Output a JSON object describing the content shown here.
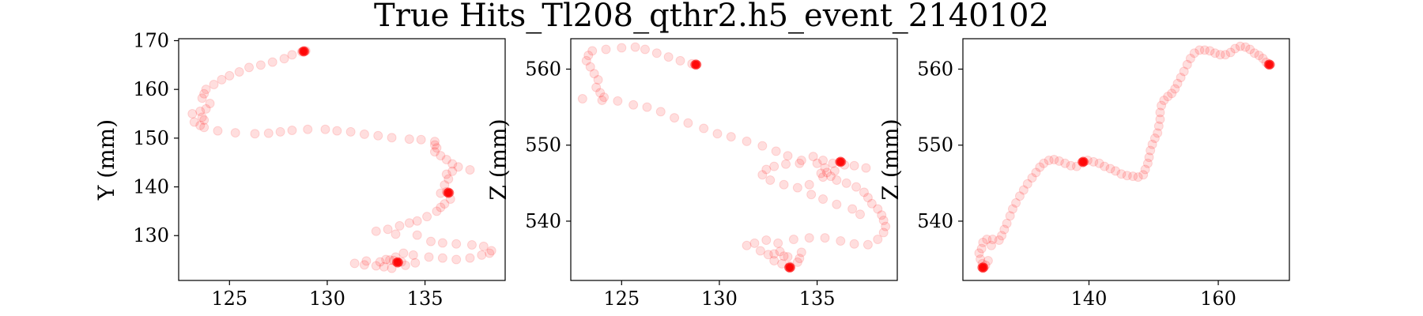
{
  "figure": {
    "title": "True Hits_Tl208_qthr2.h5_event_2140102",
    "marker_color": "#ff0000"
  },
  "chart_data": [
    {
      "type": "scatter",
      "xlabel": "",
      "ylabel": "Y (mm)",
      "xlim": [
        122.4,
        139.1
      ],
      "ylim": [
        120.8,
        170.4
      ],
      "xticks": [
        125,
        130,
        135
      ],
      "yticks": [
        130,
        140,
        150,
        160,
        170
      ],
      "points": [
        [
          128.9,
          167.9
        ],
        [
          128.7,
          167.7
        ],
        [
          128.2,
          167.1
        ],
        [
          127.8,
          166.3
        ],
        [
          127.2,
          165.6
        ],
        [
          126.6,
          165.0
        ],
        [
          126.0,
          164.5
        ],
        [
          125.5,
          163.6
        ],
        [
          125.0,
          162.8
        ],
        [
          124.6,
          162.0
        ],
        [
          124.2,
          161.0
        ],
        [
          123.8,
          160.0
        ],
        [
          123.7,
          159.1
        ],
        [
          123.6,
          158.2
        ],
        [
          124.0,
          157.1
        ],
        [
          123.8,
          156.0
        ],
        [
          123.5,
          155.5
        ],
        [
          123.1,
          155.0
        ],
        [
          123.6,
          154.3
        ],
        [
          123.7,
          153.7
        ],
        [
          123.2,
          153.3
        ],
        [
          123.5,
          152.6
        ],
        [
          123.7,
          152.2
        ],
        [
          124.4,
          151.5
        ],
        [
          125.3,
          151.1
        ],
        [
          126.3,
          150.9
        ],
        [
          127.0,
          151.0
        ],
        [
          127.6,
          151.3
        ],
        [
          128.2,
          151.6
        ],
        [
          129.0,
          151.8
        ],
        [
          129.9,
          151.8
        ],
        [
          130.5,
          151.5
        ],
        [
          131.2,
          151.3
        ],
        [
          131.9,
          150.8
        ],
        [
          132.6,
          150.5
        ],
        [
          133.3,
          150.1
        ],
        [
          134.2,
          149.8
        ],
        [
          134.8,
          149.7
        ],
        [
          135.5,
          149.3
        ],
        [
          135.5,
          148.6
        ],
        [
          135.6,
          148.0
        ],
        [
          135.5,
          147.2
        ],
        [
          135.8,
          146.4
        ],
        [
          136.1,
          145.6
        ],
        [
          136.4,
          144.7
        ],
        [
          136.7,
          144.1
        ],
        [
          137.3,
          143.5
        ],
        [
          136.4,
          143.2
        ],
        [
          136.1,
          142.6
        ],
        [
          136.2,
          141.6
        ],
        [
          136.0,
          140.4
        ],
        [
          136.1,
          139.0
        ],
        [
          135.8,
          138.7
        ],
        [
          136.3,
          137.5
        ],
        [
          136.0,
          136.5
        ],
        [
          135.8,
          135.8
        ],
        [
          135.6,
          135.0
        ],
        [
          135.1,
          133.9
        ],
        [
          134.6,
          133.0
        ],
        [
          134.2,
          132.6
        ],
        [
          133.7,
          132.0
        ],
        [
          133.1,
          131.3
        ],
        [
          132.5,
          130.9
        ],
        [
          133.5,
          130.3
        ],
        [
          134.6,
          130.1
        ],
        [
          135.3,
          128.8
        ],
        [
          135.9,
          128.5
        ],
        [
          136.6,
          128.3
        ],
        [
          137.4,
          128.1
        ],
        [
          138.0,
          127.8
        ],
        [
          138.4,
          126.9
        ],
        [
          138.3,
          126.4
        ],
        [
          137.9,
          126.0
        ],
        [
          137.3,
          125.4
        ],
        [
          136.6,
          125.1
        ],
        [
          135.9,
          125.4
        ],
        [
          135.2,
          125.6
        ],
        [
          134.4,
          126.0
        ],
        [
          133.9,
          126.4
        ],
        [
          133.5,
          125.6
        ],
        [
          133.2,
          125.0
        ],
        [
          132.7,
          124.6
        ],
        [
          132.0,
          124.8
        ],
        [
          131.4,
          124.3
        ],
        [
          131.9,
          124.0
        ],
        [
          132.5,
          123.8
        ],
        [
          132.9,
          123.6
        ],
        [
          133.3,
          123.3
        ],
        [
          134.0,
          123.9
        ],
        [
          134.5,
          124.4
        ],
        [
          133.8,
          124.6
        ],
        [
          133.4,
          124.9
        ],
        [
          133.0,
          125.1
        ]
      ],
      "highlights": [
        [
          128.8,
          167.8
        ],
        [
          136.2,
          138.8
        ],
        [
          133.6,
          124.5
        ]
      ]
    },
    {
      "type": "scatter",
      "xlabel": "",
      "ylabel": "Z (mm)",
      "xlim": [
        122.4,
        139.1
      ],
      "ylim": [
        532.2,
        564.0
      ],
      "xticks": [
        125,
        130,
        135
      ],
      "yticks": [
        540,
        550,
        560
      ],
      "points": [
        [
          128.6,
          560.7
        ],
        [
          128.0,
          561.1
        ],
        [
          127.4,
          561.6
        ],
        [
          126.8,
          562.1
        ],
        [
          126.2,
          562.6
        ],
        [
          125.7,
          562.9
        ],
        [
          125.0,
          562.8
        ],
        [
          124.2,
          562.6
        ],
        [
          123.5,
          562.4
        ],
        [
          123.3,
          561.8
        ],
        [
          123.2,
          561.1
        ],
        [
          123.4,
          560.3
        ],
        [
          123.6,
          559.4
        ],
        [
          123.8,
          558.6
        ],
        [
          123.7,
          557.6
        ],
        [
          123.9,
          556.9
        ],
        [
          124.1,
          556.3
        ],
        [
          123.0,
          556.1
        ],
        [
          124.0,
          555.9
        ],
        [
          124.8,
          555.8
        ],
        [
          125.6,
          555.3
        ],
        [
          126.3,
          555.0
        ],
        [
          127.0,
          554.4
        ],
        [
          127.7,
          553.6
        ],
        [
          128.4,
          552.9
        ],
        [
          129.2,
          552.2
        ],
        [
          129.9,
          551.5
        ],
        [
          130.6,
          551.1
        ],
        [
          131.4,
          550.5
        ],
        [
          132.2,
          549.9
        ],
        [
          132.9,
          549.2
        ],
        [
          133.5,
          548.6
        ],
        [
          134.2,
          548.0
        ],
        [
          135.0,
          547.6
        ],
        [
          135.4,
          547.0
        ],
        [
          135.5,
          546.4
        ],
        [
          135.7,
          545.9
        ],
        [
          136.0,
          545.4
        ],
        [
          136.5,
          545.0
        ],
        [
          137.0,
          544.5
        ],
        [
          137.4,
          543.8
        ],
        [
          137.6,
          543.1
        ],
        [
          137.8,
          542.3
        ],
        [
          138.1,
          541.6
        ],
        [
          138.3,
          540.8
        ],
        [
          138.4,
          540.1
        ],
        [
          138.5,
          539.3
        ],
        [
          138.4,
          538.5
        ],
        [
          138.1,
          537.6
        ],
        [
          137.6,
          536.9
        ],
        [
          136.9,
          537.0
        ],
        [
          136.2,
          537.4
        ],
        [
          135.4,
          537.8
        ],
        [
          134.6,
          537.8
        ],
        [
          133.8,
          537.6
        ],
        [
          133.0,
          537.1
        ],
        [
          132.4,
          537.5
        ],
        [
          131.8,
          537.1
        ],
        [
          131.4,
          536.8
        ],
        [
          132.1,
          536.1
        ],
        [
          132.8,
          535.7
        ],
        [
          133.5,
          535.3
        ],
        [
          134.1,
          535.1
        ],
        [
          134.0,
          534.6
        ],
        [
          133.6,
          534.1
        ],
        [
          133.2,
          534.4
        ],
        [
          132.8,
          534.8
        ],
        [
          133.3,
          535.4
        ],
        [
          133.1,
          536.0
        ],
        [
          132.5,
          535.6
        ],
        [
          134.2,
          535.9
        ],
        [
          134.6,
          544.8
        ],
        [
          135.3,
          545.8
        ],
        [
          135.2,
          546.3
        ],
        [
          135.9,
          546.6
        ],
        [
          136.4,
          547.4
        ],
        [
          136.9,
          547.3
        ],
        [
          137.5,
          547.0
        ],
        [
          135.8,
          547.6
        ],
        [
          135.3,
          548.0
        ],
        [
          134.8,
          548.5
        ],
        [
          134.1,
          547.6
        ],
        [
          133.4,
          547.5
        ],
        [
          132.8,
          547.2
        ],
        [
          132.4,
          546.8
        ],
        [
          132.2,
          546.1
        ],
        [
          132.6,
          545.4
        ],
        [
          133.3,
          544.8
        ],
        [
          134.0,
          544.4
        ],
        [
          134.7,
          543.5
        ],
        [
          135.3,
          542.9
        ],
        [
          136.0,
          542.2
        ],
        [
          136.8,
          541.6
        ],
        [
          137.2,
          540.9
        ]
      ],
      "highlights": [
        [
          128.8,
          560.6
        ],
        [
          136.2,
          547.8
        ],
        [
          133.6,
          533.9
        ]
      ]
    },
    {
      "type": "scatter",
      "xlabel": "",
      "ylabel": "Z (mm)",
      "xlim": [
        120.5,
        171.0
      ],
      "ylim": [
        532.2,
        564.0
      ],
      "xticks": [
        140,
        160
      ],
      "yticks": [
        540,
        550,
        560
      ],
      "points": [
        [
          123.5,
          534.4
        ],
        [
          123.2,
          535.0
        ],
        [
          123.0,
          535.8
        ],
        [
          123.4,
          536.4
        ],
        [
          123.6,
          537.2
        ],
        [
          124.2,
          537.6
        ],
        [
          125.1,
          537.6
        ],
        [
          126.1,
          537.5
        ],
        [
          126.5,
          538.1
        ],
        [
          126.9,
          538.9
        ],
        [
          127.3,
          539.7
        ],
        [
          127.8,
          540.7
        ],
        [
          128.2,
          541.6
        ],
        [
          128.7,
          542.4
        ],
        [
          129.3,
          543.3
        ],
        [
          129.9,
          544.1
        ],
        [
          130.5,
          544.9
        ],
        [
          131.2,
          545.7
        ],
        [
          131.8,
          546.4
        ],
        [
          132.4,
          547.1
        ],
        [
          133.0,
          547.6
        ],
        [
          133.8,
          548.0
        ],
        [
          134.6,
          548.1
        ],
        [
          135.4,
          547.9
        ],
        [
          136.3,
          547.6
        ],
        [
          137.2,
          547.3
        ],
        [
          138.1,
          547.2
        ],
        [
          139.0,
          547.7
        ],
        [
          139.8,
          548.0
        ],
        [
          140.7,
          547.8
        ],
        [
          141.6,
          547.6
        ],
        [
          142.4,
          547.2
        ],
        [
          143.3,
          546.9
        ],
        [
          144.1,
          546.6
        ],
        [
          145.0,
          546.2
        ],
        [
          145.9,
          546.0
        ],
        [
          146.8,
          545.9
        ],
        [
          147.6,
          545.8
        ],
        [
          148.4,
          546.1
        ],
        [
          148.7,
          546.8
        ],
        [
          149.1,
          547.6
        ],
        [
          149.3,
          548.4
        ],
        [
          149.5,
          549.3
        ],
        [
          149.8,
          550.1
        ],
        [
          150.2,
          550.9
        ],
        [
          150.6,
          551.6
        ],
        [
          150.8,
          552.5
        ],
        [
          151.0,
          553.4
        ],
        [
          151.0,
          554.3
        ],
        [
          151.2,
          555.2
        ],
        [
          151.6,
          555.9
        ],
        [
          152.2,
          556.4
        ],
        [
          152.8,
          556.8
        ],
        [
          153.3,
          557.4
        ],
        [
          153.7,
          558.1
        ],
        [
          154.2,
          558.9
        ],
        [
          154.7,
          559.7
        ],
        [
          155.2,
          560.6
        ],
        [
          155.7,
          561.4
        ],
        [
          156.3,
          562.1
        ],
        [
          157.1,
          562.5
        ],
        [
          157.9,
          562.5
        ],
        [
          158.7,
          562.4
        ],
        [
          159.5,
          562.1
        ],
        [
          160.3,
          561.9
        ],
        [
          161.1,
          561.9
        ],
        [
          161.9,
          562.2
        ],
        [
          162.6,
          562.7
        ],
        [
          163.4,
          563.0
        ],
        [
          164.2,
          562.9
        ],
        [
          164.9,
          562.6
        ],
        [
          165.6,
          562.1
        ],
        [
          166.3,
          561.8
        ],
        [
          166.9,
          561.4
        ],
        [
          167.4,
          560.9
        ],
        [
          124.4,
          534.8
        ],
        [
          124.0,
          534.2
        ],
        [
          123.6,
          533.8
        ],
        [
          124.9,
          536.8
        ]
      ],
      "highlights": [
        [
          167.9,
          560.6
        ],
        [
          139.1,
          547.8
        ],
        [
          123.6,
          533.9
        ]
      ]
    }
  ]
}
